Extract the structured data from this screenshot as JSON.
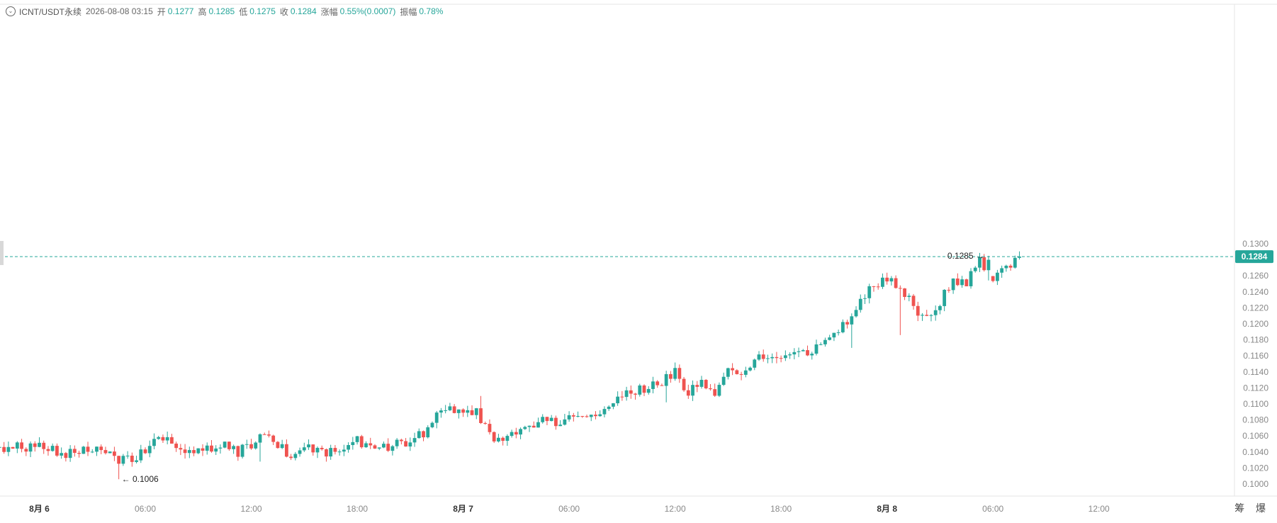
{
  "header": {
    "symbol": "ICNT/USDT永续",
    "datetime": "2026-08-08 03:15",
    "open_label": "开",
    "open": "0.1277",
    "high_label": "高",
    "high": "0.1285",
    "low_label": "低",
    "low": "0.1275",
    "close_label": "收",
    "close": "0.1284",
    "change_label": "涨幅",
    "change": "0.55%(0.0007)",
    "amplitude_label": "振幅",
    "amplitude": "0.78%"
  },
  "brand": "筹 爆",
  "chart_data": {
    "type": "candlestick",
    "y_axis": {
      "min": 0.099,
      "max": 0.1305,
      "position": "right",
      "ticks": [
        "0.1000",
        "0.1020",
        "0.1040",
        "0.1060",
        "0.1080",
        "0.1100",
        "0.1120",
        "0.1140",
        "0.1160",
        "0.1180",
        "0.1200",
        "0.1220",
        "0.1240",
        "0.1260",
        "0.1280",
        "0.1300"
      ]
    },
    "x_axis": {
      "ticks": [
        {
          "label": "8月 6",
          "bold": true,
          "index": 0
        },
        {
          "label": "06:00",
          "bold": false,
          "index": 24
        },
        {
          "label": "12:00",
          "bold": false,
          "index": 48
        },
        {
          "label": "18:00",
          "bold": false,
          "index": 72
        },
        {
          "label": "8月 7",
          "bold": true,
          "index": 96
        },
        {
          "label": "06:00",
          "bold": false,
          "index": 120
        },
        {
          "label": "12:00",
          "bold": false,
          "index": 144
        },
        {
          "label": "18:00",
          "bold": false,
          "index": 168
        },
        {
          "label": "8月 8",
          "bold": true,
          "index": 192
        },
        {
          "label": "06:00",
          "bold": false,
          "index": 216
        },
        {
          "label": "12:00",
          "bold": false,
          "index": 240
        }
      ]
    },
    "last_price": "0.1284",
    "max_marker": {
      "label": "0.1285",
      "index": 215,
      "value": 0.1285
    },
    "min_marker": {
      "label": "0.1006",
      "index": 18,
      "value": 0.1006
    },
    "colors": {
      "up": "#26a69a",
      "down": "#ef5350",
      "last_price": "#26a69a",
      "grid": "#f2f2f2",
      "axis_text": "#888888"
    },
    "anchors": [
      [
        -9,
        0.1046
      ],
      [
        0,
        0.1046
      ],
      [
        3,
        0.1042
      ],
      [
        6,
        0.1038
      ],
      [
        9,
        0.1042
      ],
      [
        12,
        0.1046
      ],
      [
        15,
        0.1038
      ],
      [
        18,
        0.103
      ],
      [
        21,
        0.1032
      ],
      [
        24,
        0.104
      ],
      [
        27,
        0.1056
      ],
      [
        30,
        0.1052
      ],
      [
        33,
        0.1044
      ],
      [
        36,
        0.104
      ],
      [
        39,
        0.1046
      ],
      [
        42,
        0.1054
      ],
      [
        45,
        0.104
      ],
      [
        48,
        0.105
      ],
      [
        51,
        0.1062
      ],
      [
        54,
        0.105
      ],
      [
        57,
        0.1034
      ],
      [
        60,
        0.1048
      ],
      [
        63,
        0.104
      ],
      [
        66,
        0.104
      ],
      [
        69,
        0.1044
      ],
      [
        72,
        0.1054
      ],
      [
        75,
        0.1044
      ],
      [
        78,
        0.1046
      ],
      [
        81,
        0.105
      ],
      [
        84,
        0.1054
      ],
      [
        87,
        0.1064
      ],
      [
        90,
        0.109
      ],
      [
        93,
        0.1096
      ],
      [
        96,
        0.109
      ],
      [
        99,
        0.109
      ],
      [
        102,
        0.106
      ],
      [
        105,
        0.1056
      ],
      [
        108,
        0.1064
      ],
      [
        111,
        0.1074
      ],
      [
        114,
        0.108
      ],
      [
        117,
        0.1078
      ],
      [
        120,
        0.108
      ],
      [
        123,
        0.1084
      ],
      [
        126,
        0.1086
      ],
      [
        129,
        0.1102
      ],
      [
        132,
        0.111
      ],
      [
        135,
        0.1116
      ],
      [
        138,
        0.112
      ],
      [
        141,
        0.1128
      ],
      [
        144,
        0.114
      ],
      [
        147,
        0.1112
      ],
      [
        150,
        0.113
      ],
      [
        153,
        0.1112
      ],
      [
        156,
        0.114
      ],
      [
        159,
        0.1138
      ],
      [
        162,
        0.1156
      ],
      [
        165,
        0.116
      ],
      [
        168,
        0.1162
      ],
      [
        171,
        0.1168
      ],
      [
        174,
        0.116
      ],
      [
        177,
        0.1176
      ],
      [
        180,
        0.119
      ],
      [
        183,
        0.12
      ],
      [
        186,
        0.123
      ],
      [
        189,
        0.125
      ],
      [
        192,
        0.1256
      ],
      [
        195,
        0.1248
      ],
      [
        198,
        0.1222
      ],
      [
        201,
        0.1204
      ],
      [
        204,
        0.1228
      ],
      [
        207,
        0.1254
      ],
      [
        210,
        0.125
      ],
      [
        213,
        0.128
      ],
      [
        216,
        0.1258
      ],
      [
        219,
        0.1268
      ],
      [
        221,
        0.1278
      ],
      [
        222,
        0.1284
      ]
    ]
  }
}
